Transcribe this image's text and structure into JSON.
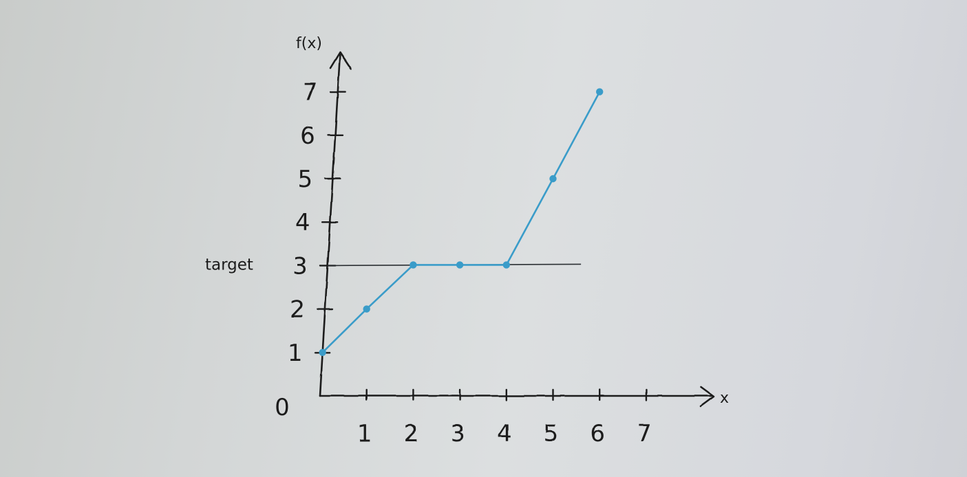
{
  "chart_data": {
    "type": "line",
    "xlabel": "x",
    "ylabel": "f(x)",
    "origin_label": "0",
    "xlim": [
      0,
      7
    ],
    "ylim": [
      0,
      7
    ],
    "x_ticks": [
      1,
      2,
      3,
      4,
      5,
      6,
      7
    ],
    "y_ticks": [
      1,
      2,
      3,
      4,
      5,
      6,
      7
    ],
    "grid": false,
    "series": [
      {
        "color": "#3a9cc9",
        "x": [
          0,
          1,
          2,
          3,
          4,
          5,
          6
        ],
        "y": [
          1,
          2,
          3,
          3,
          3,
          5,
          7
        ]
      }
    ],
    "reference_lines": [
      {
        "orientation": "horizontal",
        "y": 3,
        "x_range": [
          0,
          5.6
        ],
        "label": "target",
        "color": "#2b2f33"
      }
    ]
  }
}
